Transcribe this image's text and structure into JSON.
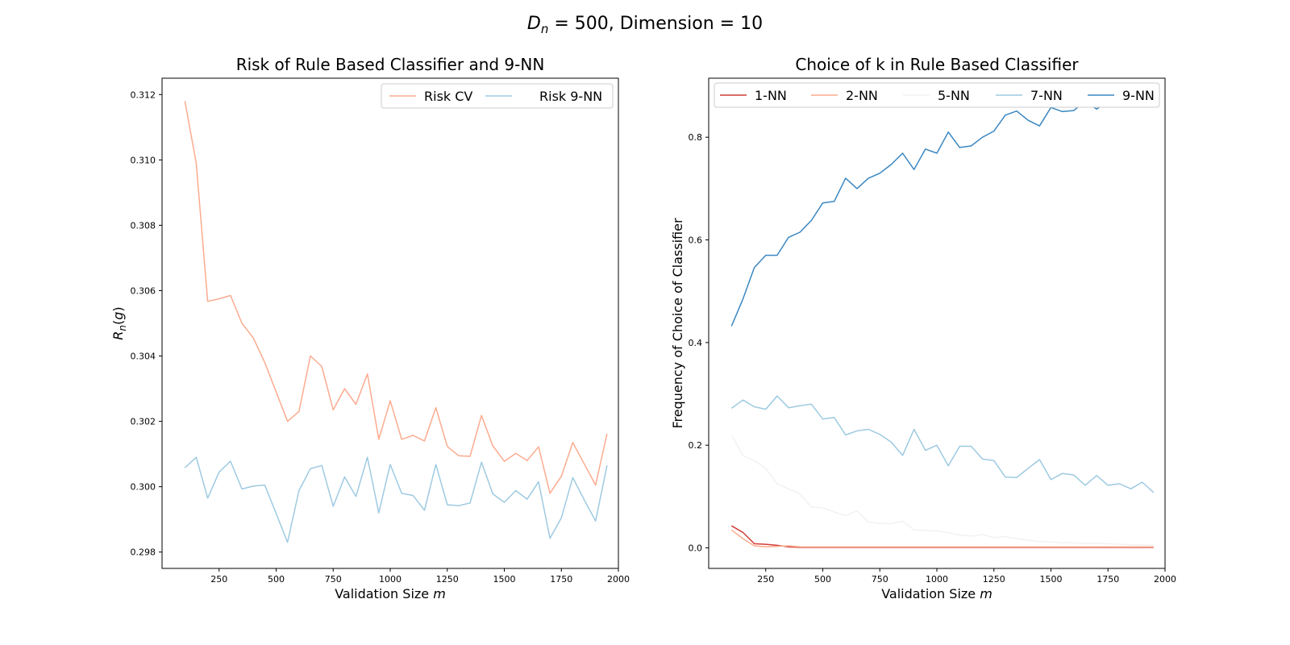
{
  "figure": {
    "suptitle_parts": [
      "D",
      "n",
      " = 500, Dimension = 10"
    ]
  },
  "colors": {
    "risk_cv": "#fcab8f",
    "risk_9nn": "#9ecae1",
    "nn1": "#d03b35",
    "nn2": "#fbab8e",
    "nn5": "#f2f2f2",
    "nn7": "#9dcae1",
    "nn9": "#3a87c1"
  },
  "chart_data": [
    {
      "type": "line",
      "title": "Risk of Rule Based Classifier and 9-NN",
      "xlabel": "Validation Size m",
      "ylabel": "R_n(g)",
      "xlim": [
        0,
        2000
      ],
      "ylim": [
        0.2975,
        0.3125
      ],
      "xticks": [
        250,
        500,
        750,
        1000,
        1250,
        1500,
        1750,
        2000
      ],
      "yticks": [
        0.298,
        0.3,
        0.302,
        0.304,
        0.306,
        0.308,
        0.31,
        0.312
      ],
      "ytick_labels": [
        "0.298",
        "0.300",
        "0.302",
        "0.304",
        "0.306",
        "0.308",
        "0.310",
        "0.312"
      ],
      "legend_position": "top-right",
      "legend_columns": 2,
      "grid": false,
      "x": [
        100,
        150,
        200,
        250,
        300,
        350,
        400,
        450,
        500,
        550,
        600,
        650,
        700,
        750,
        800,
        850,
        900,
        950,
        1000,
        1050,
        1100,
        1150,
        1200,
        1250,
        1300,
        1350,
        1400,
        1450,
        1500,
        1550,
        1600,
        1650,
        1700,
        1750,
        1800,
        1850,
        1900,
        1950
      ],
      "series": [
        {
          "name": "Risk CV",
          "color_key": "risk_cv",
          "values": [
            0.3118,
            0.3099,
            0.30567,
            0.30575,
            0.30585,
            0.305,
            0.30455,
            0.3038,
            0.3029,
            0.302,
            0.3023,
            0.304,
            0.30368,
            0.30235,
            0.303,
            0.30252,
            0.30345,
            0.30145,
            0.30263,
            0.30145,
            0.30157,
            0.3014,
            0.30242,
            0.30123,
            0.30095,
            0.30093,
            0.30218,
            0.30125,
            0.30078,
            0.30102,
            0.3008,
            0.30122,
            0.2998,
            0.30032,
            0.30135,
            0.3007,
            0.30005,
            0.30162
          ]
        },
        {
          "name": "Risk 9-NN",
          "color_key": "risk_9nn",
          "values": [
            0.30058,
            0.3009,
            0.29965,
            0.30045,
            0.30078,
            0.29993,
            0.30002,
            0.30005,
            0.29918,
            0.2983,
            0.29988,
            0.30055,
            0.30065,
            0.2994,
            0.3003,
            0.2997,
            0.3009,
            0.2992,
            0.30068,
            0.2998,
            0.29973,
            0.29928,
            0.30068,
            0.29945,
            0.29942,
            0.2995,
            0.30075,
            0.29978,
            0.29952,
            0.29988,
            0.29962,
            0.30015,
            0.29842,
            0.29905,
            0.30028,
            0.2996,
            0.29895,
            0.30065
          ]
        }
      ]
    },
    {
      "type": "line",
      "title": "Choice of k in Rule Based Classifier",
      "xlabel": "Validation Size m",
      "ylabel": "Frequency of Choice of Classifier",
      "xlim": [
        0,
        2000
      ],
      "ylim": [
        -0.04,
        0.915
      ],
      "xticks": [
        250,
        500,
        750,
        1000,
        1250,
        1500,
        1750,
        2000
      ],
      "yticks": [
        0.0,
        0.2,
        0.4,
        0.6,
        0.8
      ],
      "ytick_labels": [
        "0.0",
        "0.2",
        "0.4",
        "0.6",
        "0.8"
      ],
      "legend_position": "top",
      "legend_columns": 5,
      "grid": false,
      "x": [
        100,
        150,
        200,
        250,
        300,
        350,
        400,
        450,
        500,
        550,
        600,
        650,
        700,
        750,
        800,
        850,
        900,
        950,
        1000,
        1050,
        1100,
        1150,
        1200,
        1250,
        1300,
        1350,
        1400,
        1450,
        1500,
        1550,
        1600,
        1650,
        1700,
        1750,
        1800,
        1850,
        1900,
        1950
      ],
      "series": [
        {
          "name": "1-NN",
          "color_key": "nn1",
          "values": [
            0.043,
            0.03,
            0.008,
            0.007,
            0.005,
            0.002,
            0.001,
            0.001,
            0.001,
            0.001,
            0.001,
            0.001,
            0.001,
            0.001,
            0.001,
            0.001,
            0.001,
            0.001,
            0.001,
            0.001,
            0.001,
            0.001,
            0.001,
            0.001,
            0.001,
            0.001,
            0.001,
            0.001,
            0.001,
            0.001,
            0.001,
            0.001,
            0.001,
            0.001,
            0.001,
            0.001,
            0.001,
            0.001
          ]
        },
        {
          "name": "2-NN",
          "color_key": "nn2",
          "values": [
            0.035,
            0.018,
            0.004,
            0.002,
            0.003,
            0.004,
            0.002,
            0.002,
            0.002,
            0.002,
            0.002,
            0.002,
            0.002,
            0.002,
            0.002,
            0.002,
            0.002,
            0.002,
            0.002,
            0.002,
            0.002,
            0.002,
            0.002,
            0.002,
            0.002,
            0.002,
            0.002,
            0.002,
            0.002,
            0.002,
            0.002,
            0.002,
            0.002,
            0.002,
            0.002,
            0.002,
            0.002,
            0.002
          ]
        },
        {
          "name": "5-NN",
          "color_key": "nn5",
          "values": [
            0.22,
            0.18,
            0.17,
            0.155,
            0.125,
            0.115,
            0.105,
            0.08,
            0.078,
            0.07,
            0.063,
            0.072,
            0.05,
            0.048,
            0.047,
            0.052,
            0.035,
            0.034,
            0.033,
            0.03,
            0.025,
            0.023,
            0.026,
            0.02,
            0.022,
            0.018,
            0.015,
            0.012,
            0.012,
            0.01,
            0.01,
            0.008,
            0.009,
            0.008,
            0.007,
            0.006,
            0.006,
            0.005
          ]
        },
        {
          "name": "7-NN",
          "color_key": "nn7",
          "values": [
            0.272,
            0.288,
            0.275,
            0.27,
            0.296,
            0.273,
            0.277,
            0.28,
            0.251,
            0.254,
            0.22,
            0.228,
            0.231,
            0.221,
            0.206,
            0.18,
            0.231,
            0.19,
            0.2,
            0.16,
            0.198,
            0.198,
            0.173,
            0.17,
            0.138,
            0.137,
            0.155,
            0.172,
            0.133,
            0.145,
            0.142,
            0.122,
            0.141,
            0.122,
            0.125,
            0.115,
            0.128,
            0.108
          ]
        },
        {
          "name": "9-NN",
          "color_key": "nn9",
          "values": [
            0.432,
            0.485,
            0.546,
            0.57,
            0.57,
            0.605,
            0.615,
            0.638,
            0.672,
            0.675,
            0.72,
            0.7,
            0.72,
            0.73,
            0.747,
            0.769,
            0.737,
            0.777,
            0.769,
            0.81,
            0.78,
            0.783,
            0.8,
            0.812,
            0.843,
            0.851,
            0.833,
            0.822,
            0.858,
            0.85,
            0.852,
            0.87,
            0.855,
            0.87,
            0.872,
            0.88,
            0.867,
            0.885
          ]
        }
      ]
    }
  ]
}
